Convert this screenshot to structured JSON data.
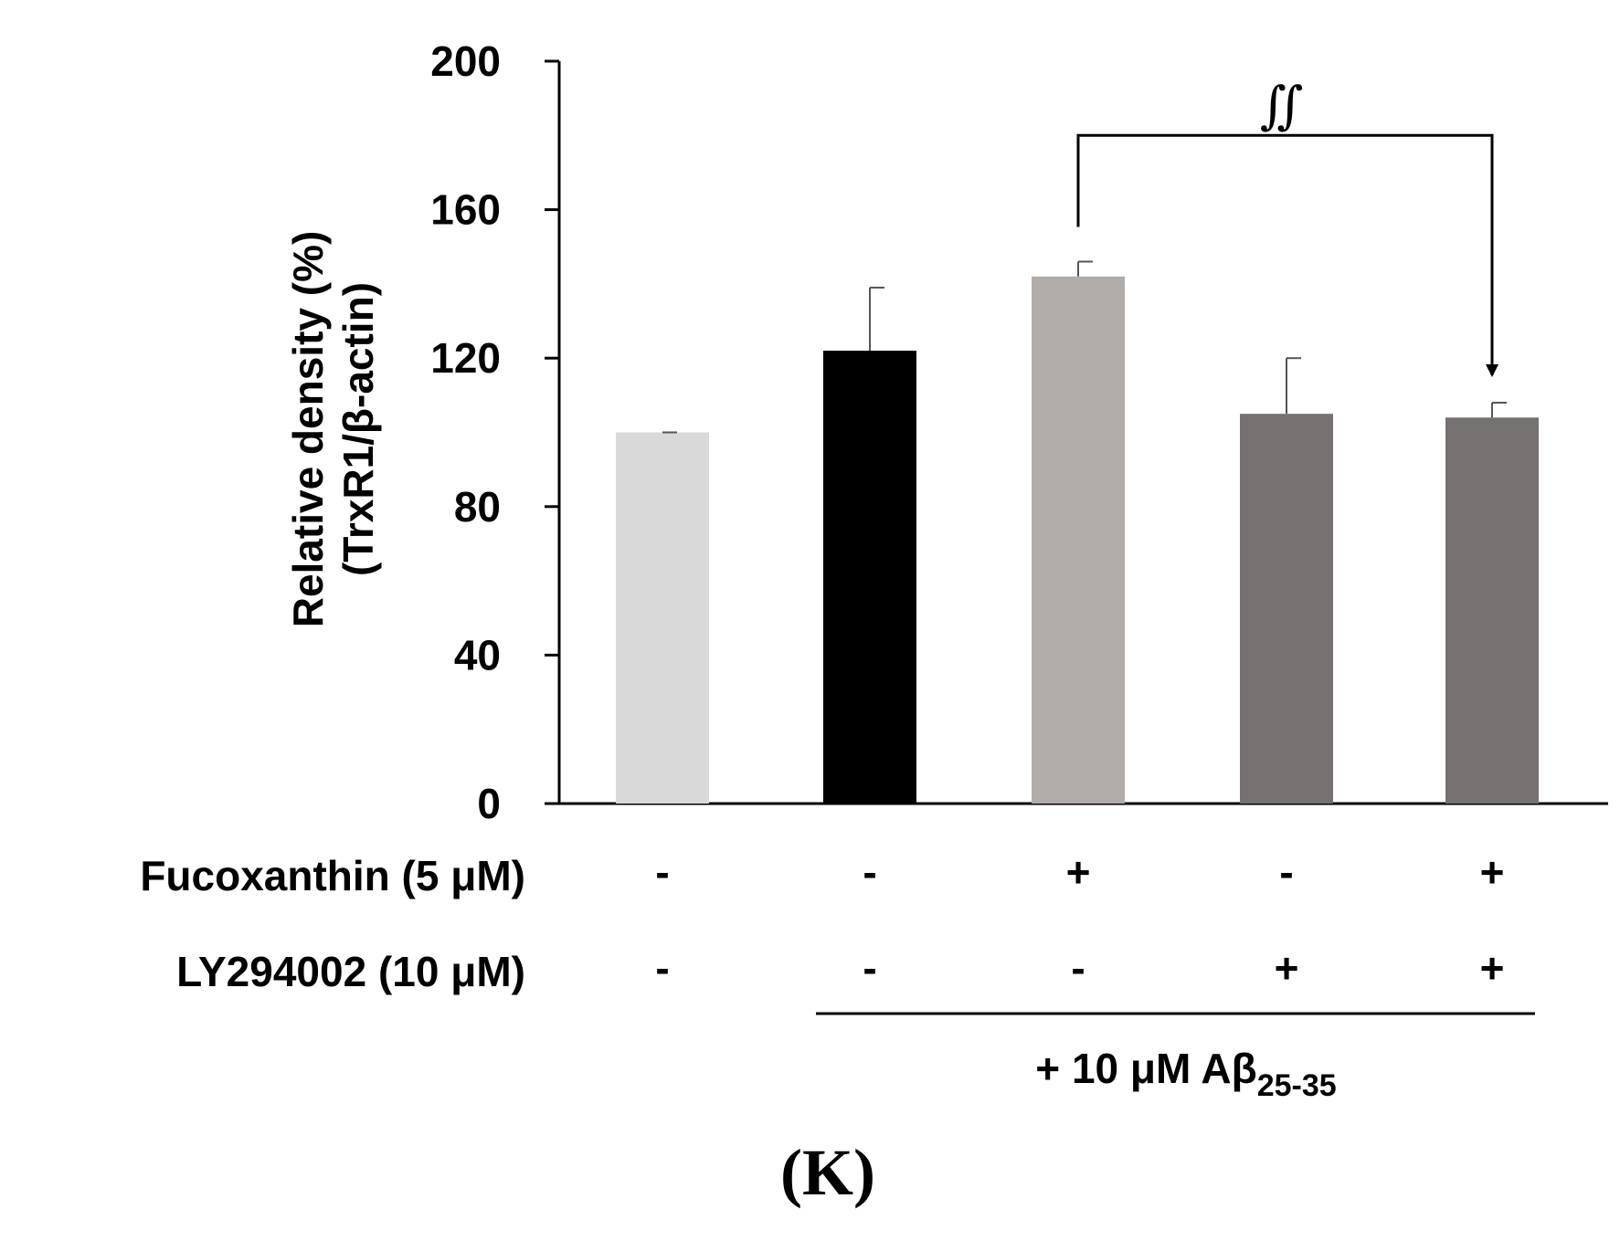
{
  "chart_data": {
    "type": "bar",
    "categories": [
      "Control",
      "Aβ25-35",
      "Fucoxanthin + Aβ25-35",
      "LY294002 + Aβ25-35",
      "Fucoxanthin + LY294002 + Aβ25-35"
    ],
    "values": [
      100,
      122,
      142,
      105,
      104
    ],
    "errors": [
      0,
      17,
      4,
      15,
      4
    ],
    "colors": [
      "#d9d9d9",
      "#000000",
      "#b0adab",
      "#767171",
      "#767171"
    ],
    "ylabel_line1": "Relative density (%)",
    "ylabel_line2": "(TrxR1/β-actin)",
    "ylim": [
      0,
      200
    ],
    "yticks": [
      "0",
      "40",
      "80",
      "120",
      "160",
      "200"
    ],
    "significance": {
      "from_bar": 2,
      "to_bar": 4,
      "label": "∬"
    },
    "treatment_rows": [
      {
        "label": "Fucoxanthin (5 μM)",
        "marks": [
          "-",
          "-",
          "+",
          "-",
          "+"
        ]
      },
      {
        "label": "LY294002 (10 μM)",
        "marks": [
          "-",
          "-",
          "-",
          "+",
          "+"
        ]
      }
    ],
    "group_label_main": "+ 10 μM Aβ",
    "group_label_sub": "25-35",
    "group_bars": [
      1,
      4
    ],
    "panel_label": "(K)"
  }
}
